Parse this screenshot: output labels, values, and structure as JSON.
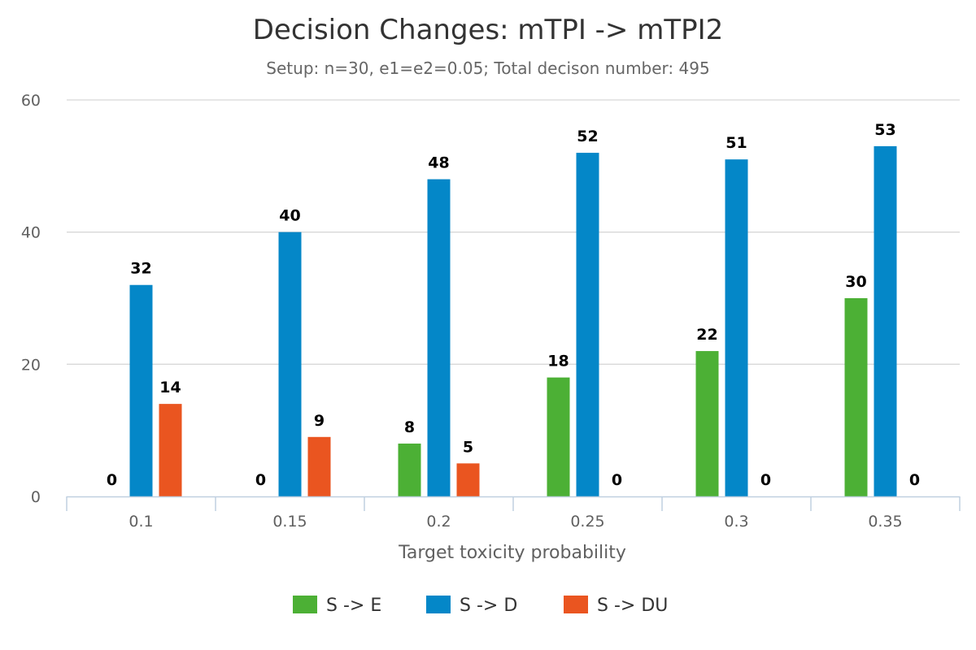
{
  "chart_data": {
    "type": "bar",
    "title": "Decision Changes: mTPI -> mTPI2",
    "subtitle": "Setup: n=30, e1=e2=0.05; Total decison number: 495",
    "xlabel": "Target toxicity probability",
    "ylabel": "",
    "categories": [
      "0.1",
      "0.15",
      "0.2",
      "0.25",
      "0.3",
      "0.35"
    ],
    "ylim": [
      0,
      60
    ],
    "yticks": [
      0,
      20,
      40,
      60
    ],
    "grid": true,
    "legend_position": "bottom-center",
    "series": [
      {
        "name": "S -> E",
        "color": "#4cb035",
        "values": [
          0,
          0,
          8,
          18,
          22,
          30
        ]
      },
      {
        "name": "S -> D",
        "color": "#0487c8",
        "values": [
          32,
          40,
          48,
          52,
          51,
          53
        ]
      },
      {
        "name": "S -> DU",
        "color": "#ea5520",
        "values": [
          14,
          9,
          5,
          0,
          0,
          0
        ]
      }
    ]
  }
}
